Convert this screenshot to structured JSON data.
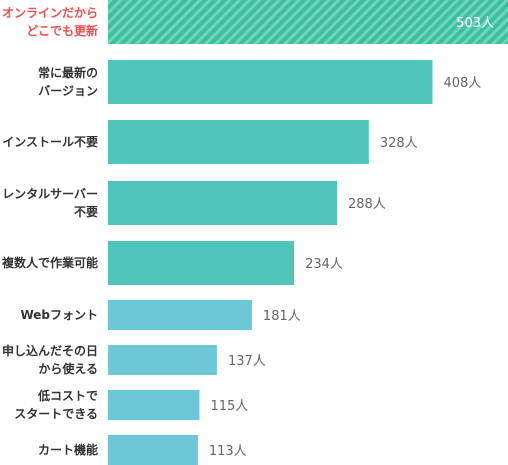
{
  "chart_data": {
    "type": "bar",
    "orientation": "horizontal",
    "unit": "人",
    "categories": [
      "オンラインだから\nどこでも更新",
      "常に最新の\nバージョン",
      "インストール不要",
      "レンタルサーバー\n不要",
      "複数人で作業可能",
      "Webフォント",
      "申し込んだその日\nから使える",
      "低コストで\nスタートできる",
      "カート機能"
    ],
    "values": [
      503,
      408,
      328,
      288,
      234,
      181,
      137,
      115,
      113
    ],
    "value_labels": [
      "503人",
      "408人",
      "328人",
      "288人",
      "234人",
      "181人",
      "137人",
      "115人",
      "113人"
    ],
    "colors": [
      "#3dbf9e",
      "#4fc4bb",
      "#4fc4bb",
      "#4fc4bb",
      "#4fc4bb",
      "#6cc8d8",
      "#6cc8d8",
      "#6cc8d8",
      "#6cc8d8"
    ],
    "highlight_index": 0,
    "highlight_label_color": "#f0504c",
    "first_bar_pattern": "diagonal-stripes",
    "xlim": [
      0,
      503
    ],
    "grid": false,
    "title": "",
    "xlabel": "",
    "ylabel": ""
  }
}
